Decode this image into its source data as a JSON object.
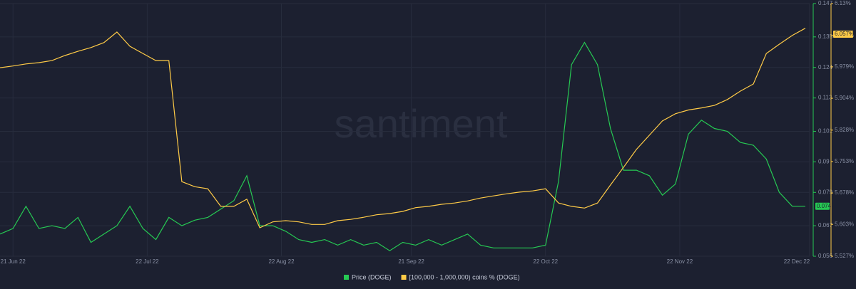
{
  "chart_data": {
    "type": "line",
    "watermark": "santiment",
    "x": [
      "2022-06-18",
      "2022-06-21",
      "2022-06-24",
      "2022-06-27",
      "2022-06-30",
      "2022-07-03",
      "2022-07-06",
      "2022-07-09",
      "2022-07-12",
      "2022-07-15",
      "2022-07-18",
      "2022-07-21",
      "2022-07-24",
      "2022-07-27",
      "2022-07-30",
      "2022-08-02",
      "2022-08-05",
      "2022-08-08",
      "2022-08-11",
      "2022-08-14",
      "2022-08-17",
      "2022-08-20",
      "2022-08-23",
      "2022-08-26",
      "2022-08-29",
      "2022-09-01",
      "2022-09-04",
      "2022-09-07",
      "2022-09-10",
      "2022-09-13",
      "2022-09-16",
      "2022-09-19",
      "2022-09-22",
      "2022-09-25",
      "2022-09-28",
      "2022-10-01",
      "2022-10-04",
      "2022-10-07",
      "2022-10-10",
      "2022-10-13",
      "2022-10-16",
      "2022-10-19",
      "2022-10-22",
      "2022-10-25",
      "2022-10-28",
      "2022-10-31",
      "2022-11-03",
      "2022-11-06",
      "2022-11-09",
      "2022-11-12",
      "2022-11-15",
      "2022-11-18",
      "2022-11-21",
      "2022-11-24",
      "2022-11-27",
      "2022-11-30",
      "2022-12-03",
      "2022-12-06",
      "2022-12-09",
      "2022-12-12",
      "2022-12-15",
      "2022-12-18",
      "2022-12-21"
    ],
    "xlim": [
      "2022-06-18",
      "2022-12-22"
    ],
    "xticks": [
      {
        "value": "2022-06-21",
        "label": "21 Jun 22"
      },
      {
        "value": "2022-07-22",
        "label": "22 Jul 22"
      },
      {
        "value": "2022-08-22",
        "label": "22 Aug 22"
      },
      {
        "value": "2022-09-21",
        "label": "21 Sep 22"
      },
      {
        "value": "2022-10-22",
        "label": "22 Oct 22"
      },
      {
        "value": "2022-11-22",
        "label": "22 Nov 22"
      },
      {
        "value": "2022-12-22",
        "label": "22 Dec 22"
      }
    ],
    "ylim": [
      0.056,
      0.147
    ],
    "yticks": [
      0.147,
      0.135,
      0.124,
      0.113,
      0.101,
      0.09,
      0.079,
      0.067,
      0.056
    ],
    "y2lim": [
      5.527,
      6.13
    ],
    "y2ticks": [
      {
        "value": 6.13,
        "label": "6.13%"
      },
      {
        "value": 6.054,
        "label": "6.054%"
      },
      {
        "value": 5.979,
        "label": "5.979%"
      },
      {
        "value": 5.904,
        "label": "5.904%"
      },
      {
        "value": 5.828,
        "label": "5.828%"
      },
      {
        "value": 5.753,
        "label": "5.753%"
      },
      {
        "value": 5.678,
        "label": "5.678%"
      },
      {
        "value": 5.603,
        "label": "5.603%"
      },
      {
        "value": 5.527,
        "label": "5.527%"
      }
    ],
    "grid": true,
    "series": [
      {
        "name": "Price (DOGE)",
        "color": "#26c953",
        "current": 0.074,
        "values": [
          0.064,
          0.066,
          0.074,
          0.066,
          0.067,
          0.066,
          0.07,
          0.061,
          0.064,
          0.067,
          0.074,
          0.066,
          0.062,
          0.07,
          0.067,
          0.069,
          0.07,
          0.073,
          0.076,
          0.085,
          0.067,
          0.067,
          0.065,
          0.062,
          0.061,
          0.062,
          0.06,
          0.062,
          0.06,
          0.061,
          0.058,
          0.061,
          0.06,
          0.062,
          0.06,
          0.062,
          0.064,
          0.06,
          0.059,
          0.059,
          0.059,
          0.059,
          0.06,
          0.083,
          0.125,
          0.133,
          0.125,
          0.102,
          0.087,
          0.087,
          0.085,
          0.078,
          0.082,
          0.1,
          0.105,
          0.102,
          0.101,
          0.097,
          0.096,
          0.091,
          0.079,
          0.074,
          0.074
        ]
      },
      {
        "name": "[100,000  - 1,000,000) coins % (DOGE)",
        "color": "#ffcb47",
        "axis": "y2",
        "current": {
          "value": 6.057,
          "label": "6.057%"
        },
        "values": [
          5.977,
          5.981,
          5.986,
          5.989,
          5.994,
          6.006,
          6.016,
          6.025,
          6.037,
          6.062,
          6.028,
          6.011,
          5.994,
          5.994,
          5.705,
          5.693,
          5.688,
          5.646,
          5.646,
          5.663,
          5.595,
          5.609,
          5.612,
          5.609,
          5.603,
          5.603,
          5.612,
          5.615,
          5.62,
          5.626,
          5.629,
          5.634,
          5.643,
          5.646,
          5.651,
          5.654,
          5.659,
          5.666,
          5.671,
          5.676,
          5.68,
          5.683,
          5.688,
          5.654,
          5.646,
          5.642,
          5.654,
          5.697,
          5.739,
          5.782,
          5.816,
          5.85,
          5.867,
          5.876,
          5.881,
          5.887,
          5.901,
          5.921,
          5.938,
          6.011,
          6.033,
          6.054,
          6.071
        ]
      }
    ]
  }
}
